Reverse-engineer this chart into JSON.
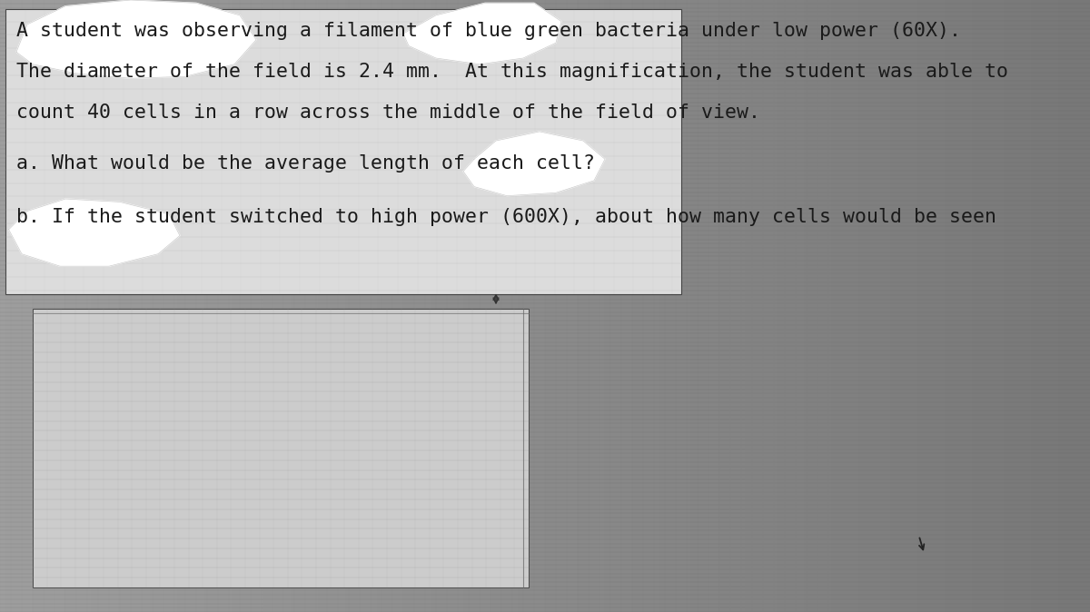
{
  "bg_color": "#707070",
  "paper_top_color": "#e0e0e0",
  "paper_bottom_color": "#d0d0d0",
  "text_color": "#1a1a1a",
  "line1": "A student was observing a filament of blue green bacteria under low power (60X).",
  "line2": "The diameter of the field is 2.4 mm.  At this magnification, the student was able to",
  "line3": "count 40 cells in a row across the middle of the field of view.",
  "line4": "a. What would be the average length of each cell?",
  "line5": "b. If the student switched to high power (600X), about how many cells would be seen",
  "font_size_main": 15.5,
  "grid_color": "#888888",
  "dark_bg": "#686868"
}
